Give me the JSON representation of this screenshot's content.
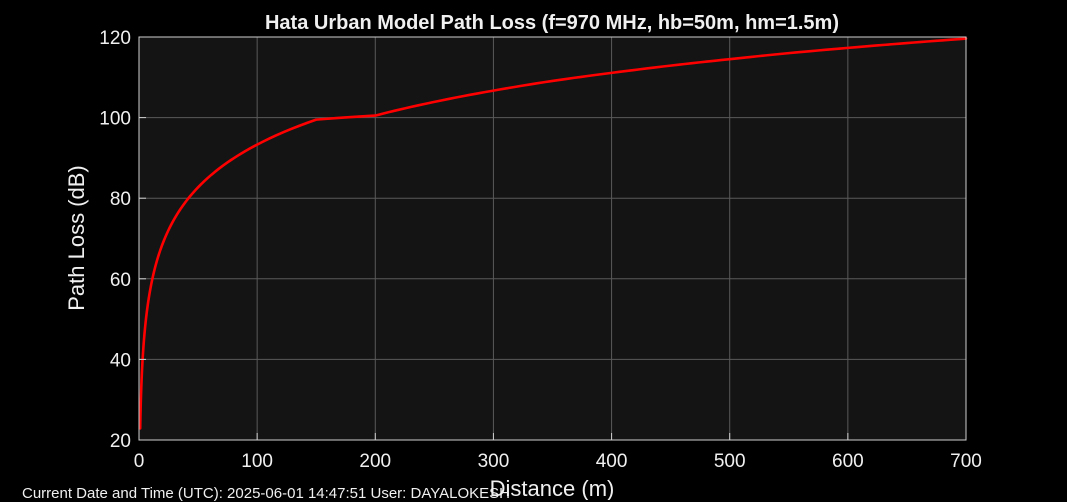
{
  "chart_data": {
    "type": "line",
    "title": "Hata Urban Model Path Loss (f=970 MHz, hb=50m, hm=1.5m)",
    "xlabel": "Distance (m)",
    "ylabel": "Path Loss (dB)",
    "xlim": [
      0,
      700
    ],
    "ylim": [
      20,
      120
    ],
    "xticks": [
      0,
      100,
      200,
      300,
      400,
      500,
      600,
      700
    ],
    "yticks": [
      20,
      40,
      60,
      80,
      100,
      120
    ],
    "xtick_labels": [
      "0",
      "100",
      "200",
      "300",
      "400",
      "500",
      "600",
      "700"
    ],
    "ytick_labels": [
      "20",
      "40",
      "60",
      "80",
      "100",
      "120"
    ],
    "grid": true,
    "background": "#141414",
    "series": [
      {
        "color": "#ff0000",
        "x": [
          1,
          2,
          3,
          5,
          10,
          15,
          20,
          30,
          40,
          50,
          75,
          100,
          150,
          200,
          250,
          300,
          350,
          400,
          450,
          500,
          550,
          600,
          650,
          700
        ],
        "y": [
          22.9,
          33.5,
          39.7,
          47.5,
          58.1,
          64.3,
          68.7,
          74.9,
          79.3,
          82.7,
          88.9,
          93.3,
          99.5,
          100.5,
          103.9,
          106.7,
          109.1,
          111.1,
          112.9,
          114.5,
          116.0,
          117.3,
          118.5,
          119.6
        ]
      }
    ]
  },
  "footer": {
    "text": "Current Date and Time (UTC): 2025-06-01 14:47:51  User: DAYALOKESH"
  }
}
